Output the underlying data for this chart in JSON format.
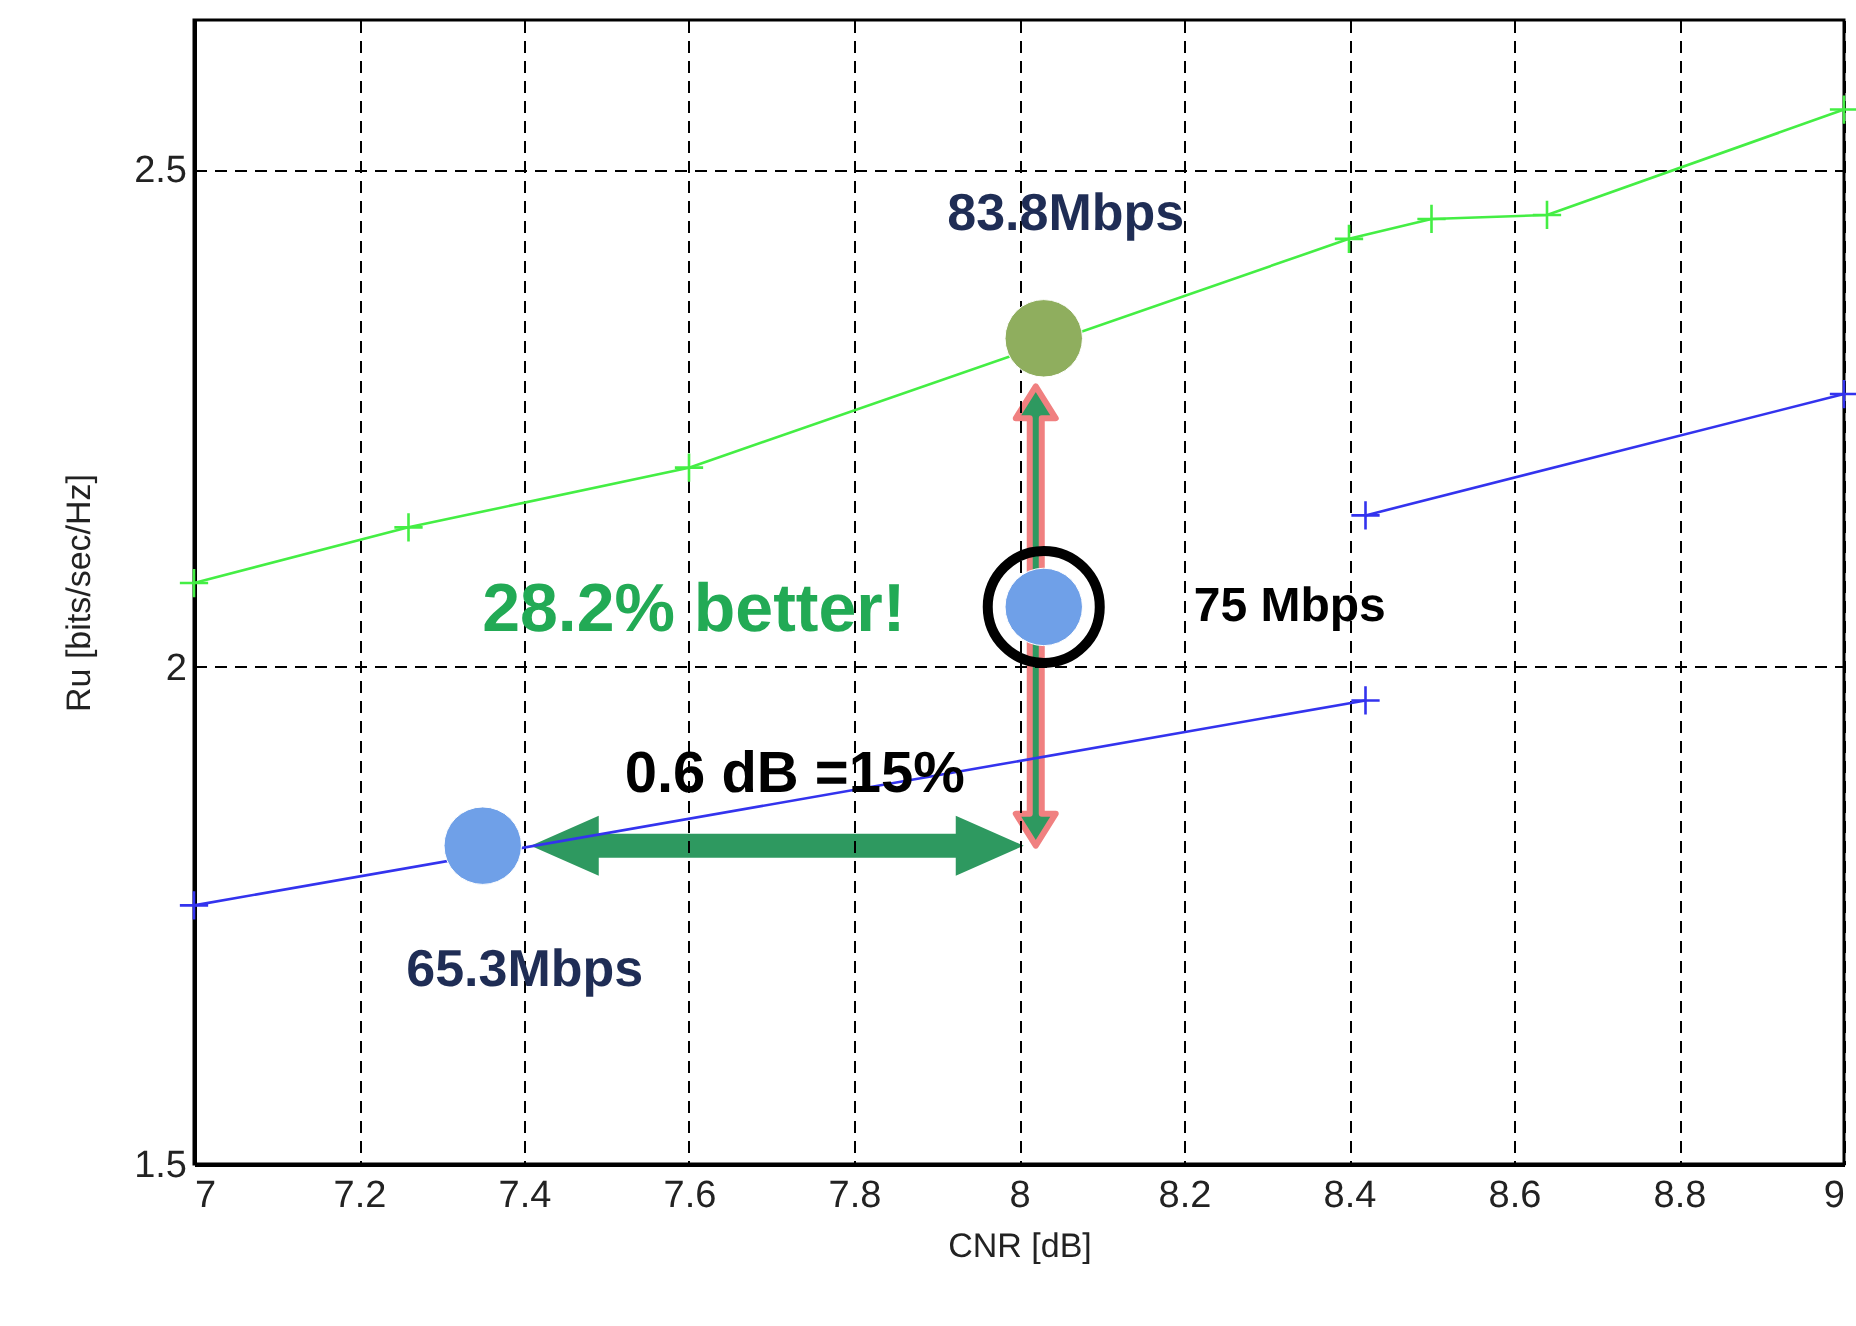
{
  "chart_data": {
    "type": "line",
    "xlabel": "CNR [dB]",
    "ylabel": "Ru [bits/sec/Hz]",
    "xlim": [
      7,
      9
    ],
    "ylim": [
      1.5,
      2.65
    ],
    "xticks": [
      7,
      7.2,
      7.4,
      7.6,
      7.8,
      8,
      8.2,
      8.4,
      8.6,
      8.8,
      9
    ],
    "yticks": [
      1.5,
      2,
      2.5
    ],
    "grid": true,
    "marker": "cross",
    "line_style": "solid",
    "series": [
      {
        "color": "#44ee44",
        "x": [
          7,
          7.26,
          7.6,
          8.4,
          8.5,
          8.64,
          9
        ],
        "values": [
          2.084,
          2.14,
          2.2,
          2.43,
          2.45,
          2.454,
          2.56
        ]
      },
      {
        "color": "#3333ee",
        "x": [
          7,
          8.42
        ],
        "values": [
          1.76,
          1.966
        ]
      },
      {
        "color": "#3333ee",
        "x": [
          8.42,
          9
        ],
        "values": [
          2.152,
          2.274
        ]
      },
      {
        "type": "scatter",
        "marker": "circle",
        "x": [
          8.03,
          8.03,
          7.35
        ],
        "values": [
          2.33,
          2.06,
          1.82
        ],
        "colors": [
          "#8fae5e",
          "#6fa0e8",
          "#6fa0e8"
        ]
      }
    ],
    "annotations": [
      "83.8Mbps",
      "75 Mbps",
      "65.3Mbps",
      "28.2% better!",
      "0.6 dB =15%"
    ]
  }
}
